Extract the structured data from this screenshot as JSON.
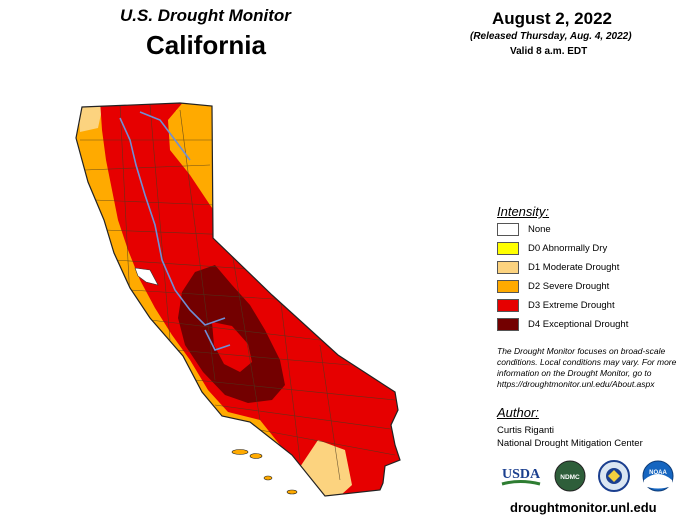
{
  "header": {
    "title": "U.S. Drought Monitor",
    "state": "California",
    "date": "August 2, 2022",
    "released": "(Released Thursday, Aug. 4, 2022)",
    "valid": "Valid 8 a.m. EDT"
  },
  "legend": {
    "heading": "Intensity:",
    "items": [
      {
        "label": "None",
        "color": "#ffffff"
      },
      {
        "label": "D0 Abnormally Dry",
        "color": "#ffff00"
      },
      {
        "label": "D1 Moderate Drought",
        "color": "#fcd37f"
      },
      {
        "label": "D2 Severe Drought",
        "color": "#ffaa00"
      },
      {
        "label": "D3 Extreme Drought",
        "color": "#e60000"
      },
      {
        "label": "D4 Exceptional Drought",
        "color": "#730000"
      }
    ]
  },
  "note": "The Drought Monitor focuses on broad-scale conditions. Local conditions may vary. For more information on the Drought Monitor, go to https://droughtmonitor.unl.edu/About.aspx",
  "author": {
    "heading": "Author:",
    "name": "Curtis Riganti",
    "org": "National Drought Mitigation Center"
  },
  "logos": {
    "usda": "USDA",
    "ndmc": "NDMC",
    "noaa": "NOAA"
  },
  "website": "droughtmonitor.unl.edu",
  "colors": {
    "county_lines": "#4a3a20",
    "rivers": "#6f8fd6",
    "usda_blue": "#1b3f8f",
    "usda_green": "#2e7d32",
    "noaa_blue": "#1565c0"
  }
}
